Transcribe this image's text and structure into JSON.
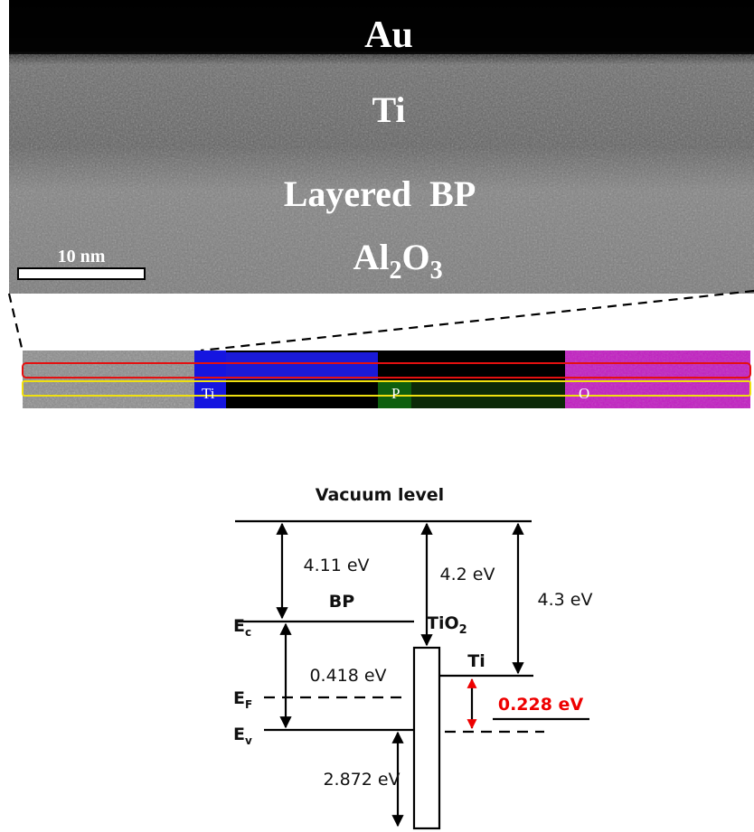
{
  "tem": {
    "layers": [
      [
        "Au"
      ],
      [
        "Ti"
      ],
      [
        "Layered  BP"
      ],
      [
        "Al",
        "2",
        "O",
        "3"
      ]
    ],
    "scale_bar": "10 nm"
  },
  "eds": {
    "labels": [
      "Ti",
      "P",
      "O"
    ]
  },
  "band": {
    "title": "Vacuum level",
    "materials": {
      "bp": "BP",
      "tio2": [
        "TiO",
        "2"
      ],
      "ti": "Ti"
    },
    "levels": {
      "ec": [
        "E",
        "c"
      ],
      "ef": [
        "E",
        "F"
      ],
      "ev": [
        "E",
        "v"
      ]
    },
    "energies": {
      "bp_affinity": "4.11 eV",
      "tio2_affinity": "4.2 eV",
      "ti_work": "4.3 eV",
      "bp_ef": "0.418 eV",
      "barrier": "0.228 eV",
      "tio2_vb": "2.872 eV"
    }
  }
}
